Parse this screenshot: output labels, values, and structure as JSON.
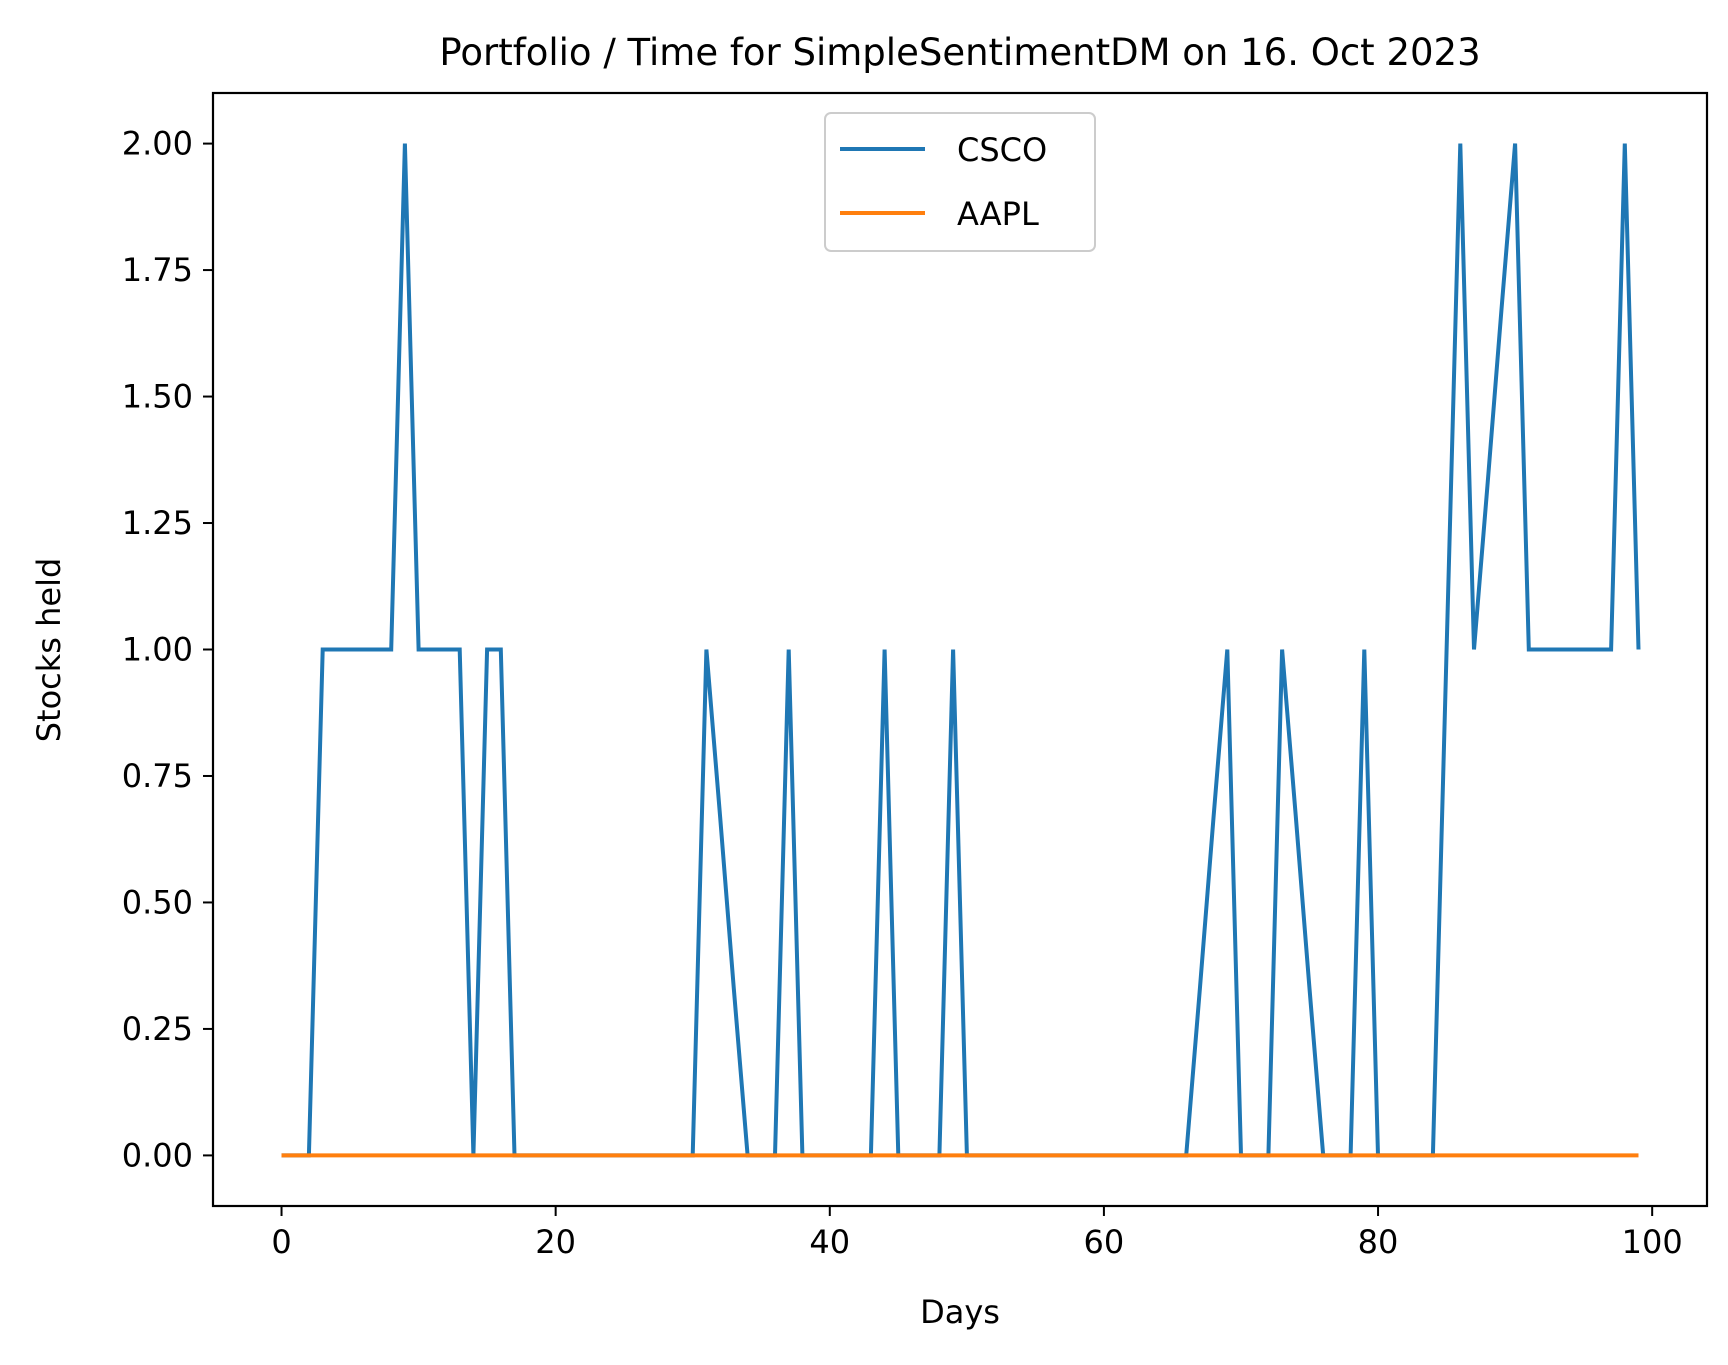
{
  "chart_data": {
    "type": "line",
    "title": "Portfolio / Time for SimpleSentimentDM on 16. Oct 2023",
    "xlabel": "Days",
    "ylabel": "Stocks held",
    "xlim": [
      -5,
      104
    ],
    "ylim": [
      -0.1,
      2.1
    ],
    "xticks": [
      0,
      20,
      40,
      60,
      80,
      100
    ],
    "xtick_labels": [
      "0",
      "20",
      "40",
      "60",
      "80",
      "100"
    ],
    "yticks": [
      0,
      0.25,
      0.5,
      0.75,
      1.0,
      1.25,
      1.5,
      1.75,
      2.0
    ],
    "ytick_labels": [
      "0.00",
      "0.25",
      "0.50",
      "0.75",
      "1.00",
      "1.25",
      "1.50",
      "1.75",
      "2.00"
    ],
    "grid": false,
    "legend_position": "upper-center",
    "series": [
      {
        "name": "CSCO",
        "color": "#1f77b4",
        "x": [
          0,
          1,
          2,
          3,
          4,
          5,
          6,
          7,
          8,
          9,
          10,
          11,
          12,
          13,
          14,
          15,
          16,
          17,
          18,
          19,
          20,
          21,
          22,
          23,
          24,
          25,
          26,
          27,
          28,
          29,
          30,
          31,
          32,
          33,
          34,
          35,
          36,
          37,
          38,
          39,
          40,
          41,
          42,
          43,
          44,
          45,
          46,
          47,
          48,
          49,
          50,
          51,
          52,
          53,
          54,
          55,
          56,
          57,
          58,
          59,
          60,
          61,
          62,
          63,
          64,
          65,
          66,
          67,
          68,
          69,
          70,
          71,
          72,
          73,
          74,
          75,
          76,
          77,
          78,
          79,
          80,
          81,
          82,
          83,
          84,
          85,
          86,
          87,
          88,
          89,
          90,
          91,
          92,
          93,
          94,
          95,
          96,
          97,
          98,
          99
        ],
        "y": [
          0,
          0,
          0,
          1,
          1,
          1,
          1,
          1,
          1,
          2,
          1,
          1,
          1,
          1,
          0,
          1,
          1,
          0,
          0,
          0,
          0,
          0,
          0,
          0,
          0,
          0,
          0,
          0,
          0,
          0,
          0,
          1,
          0.67,
          0.33,
          0,
          0,
          0,
          1,
          0,
          0,
          0,
          0,
          0,
          0,
          1,
          0,
          0,
          0,
          0,
          1,
          0,
          0,
          0,
          0,
          0,
          0,
          0,
          0,
          0,
          0,
          0,
          0,
          0,
          0,
          0,
          0,
          0,
          0.33,
          0.67,
          1,
          0,
          0,
          0,
          1,
          0.67,
          0.33,
          0,
          0,
          0,
          1,
          0,
          0,
          0,
          0,
          0,
          1,
          2,
          1,
          1.33,
          1.67,
          2,
          1,
          1,
          1,
          1,
          1,
          1,
          1,
          2,
          1
        ]
      },
      {
        "name": "AAPL",
        "color": "#ff7f0e",
        "x": [
          0,
          99
        ],
        "y": [
          0,
          0
        ]
      }
    ]
  }
}
